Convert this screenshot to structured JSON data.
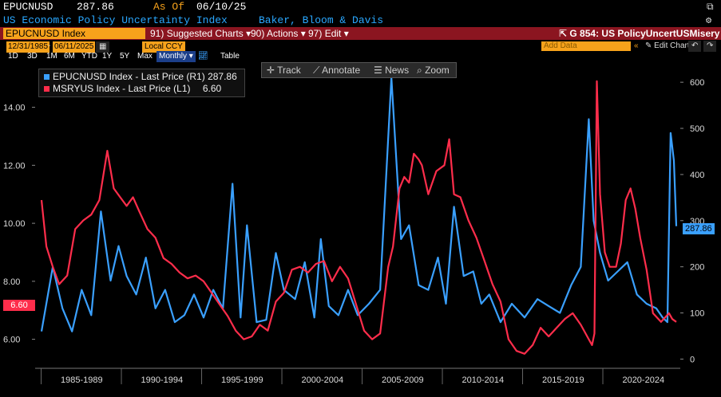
{
  "header": {
    "ticker": "EPUCNUSD",
    "price": "287.86",
    "as_of_label": "As Of",
    "as_of_date": "06/10/25",
    "description": "US Economic Policy Uncertainty Index",
    "source": "Baker, Bloom & Davis"
  },
  "command_bar": {
    "security": "EPUCNUSD Index",
    "suggested": "Suggested Charts",
    "actions": "Actions",
    "edit": "Edit",
    "chart_name": "G 854: US PolicyUncertUSMisery"
  },
  "range_bar": {
    "periods": [
      "1D",
      "3D",
      "1M",
      "6M",
      "YTD",
      "1Y",
      "5Y",
      "Max"
    ],
    "frequency": "Monthly",
    "table": "Table"
  },
  "date_bar": {
    "start": "12/31/1985",
    "end": "06/11/2025",
    "currency": "Local CCY",
    "add_data": "Add Data",
    "edit_chart": "Edit Chart"
  },
  "toolbar": {
    "track": "Track",
    "annotate": "Annotate",
    "news": "News",
    "zoom": "Zoom"
  },
  "legend": [
    {
      "label": "EPUCNUSD Index - Last Price (R1)",
      "value": "287.86",
      "color": "#3aa0ff"
    },
    {
      "label": "MSRYUS Index - Last Price (L1)",
      "value": "6.60",
      "color": "#ff2d4b"
    }
  ],
  "last_tags": {
    "left": "6.60",
    "right": "287.86"
  },
  "chart_data": {
    "type": "line",
    "x_categories": [
      "1985-1989",
      "1990-1994",
      "1995-1999",
      "2000-2004",
      "2005-2009",
      "2010-2014",
      "2015-2019",
      "2020-2024"
    ],
    "left_axis": {
      "ticks": [
        "6.00",
        "8.00",
        "10.00",
        "12.00",
        "14.00"
      ],
      "ylim": [
        5.0,
        15.5
      ]
    },
    "right_axis": {
      "ticks": [
        "0",
        "100",
        "200",
        "300",
        "400",
        "500",
        "600"
      ],
      "ylim": [
        -20,
        640
      ]
    },
    "series": [
      {
        "name": "EPUCNUSD Index - Last Price (R1)",
        "axis": "right",
        "color": "#3aa0ff",
        "x": [
          1985.9,
          1986.6,
          1987.2,
          1987.8,
          1988.4,
          1989.0,
          1989.6,
          1990.2,
          1990.7,
          1991.2,
          1991.8,
          1992.4,
          1993.0,
          1993.6,
          1994.2,
          1994.8,
          1995.4,
          1996.0,
          1996.6,
          1997.2,
          1997.8,
          1998.3,
          1998.7,
          1999.3,
          1999.9,
          2000.5,
          2001.0,
          2001.7,
          2002.3,
          2002.9,
          2003.3,
          2003.8,
          2004.4,
          2005.0,
          2005.6,
          2006.3,
          2007.0,
          2007.7,
          2008.3,
          2008.8,
          2009.4,
          2010.0,
          2010.6,
          2011.1,
          2011.6,
          2012.2,
          2012.8,
          2013.3,
          2013.8,
          2014.5,
          2015.2,
          2016.0,
          2016.8,
          2017.5,
          2018.2,
          2018.9,
          2019.5,
          2020.0,
          2020.3,
          2020.7,
          2021.2,
          2021.8,
          2022.4,
          2023.0,
          2023.6,
          2024.2,
          2024.6,
          2024.9,
          2025.1,
          2025.3,
          2025.45
        ],
        "values": [
          60,
          200,
          110,
          60,
          150,
          95,
          320,
          170,
          245,
          180,
          140,
          220,
          110,
          150,
          80,
          95,
          140,
          90,
          150,
          110,
          380,
          90,
          290,
          80,
          85,
          230,
          150,
          130,
          210,
          90,
          260,
          115,
          95,
          150,
          95,
          120,
          150,
          610,
          260,
          290,
          160,
          150,
          220,
          120,
          330,
          180,
          190,
          120,
          140,
          80,
          120,
          90,
          130,
          115,
          100,
          160,
          200,
          520,
          300,
          230,
          170,
          190,
          210,
          140,
          120,
          110,
          90,
          80,
          490,
          430,
          288
        ]
      },
      {
        "name": "MSRYUS Index - Last Price (L1)",
        "axis": "left",
        "color": "#ff2d4b",
        "x": [
          1985.9,
          1986.2,
          1986.6,
          1987.0,
          1987.5,
          1988.0,
          1988.5,
          1989.0,
          1989.5,
          1990.0,
          1990.4,
          1990.8,
          1991.2,
          1991.6,
          1992.0,
          1992.5,
          1993.0,
          1993.5,
          1994.0,
          1994.5,
          1995.0,
          1995.5,
          1996.0,
          1996.5,
          1997.0,
          1997.5,
          1998.0,
          1998.5,
          1999.0,
          1999.5,
          2000.0,
          2000.5,
          2001.0,
          2001.5,
          2002.0,
          2002.5,
          2003.0,
          2003.5,
          2004.0,
          2004.5,
          2005.0,
          2005.5,
          2006.0,
          2006.5,
          2007.0,
          2007.5,
          2007.8,
          2008.2,
          2008.5,
          2008.8,
          2009.1,
          2009.4,
          2009.6,
          2010.0,
          2010.5,
          2011.0,
          2011.3,
          2011.6,
          2012.0,
          2012.5,
          2013.0,
          2013.5,
          2014.0,
          2014.5,
          2015.0,
          2015.5,
          2016.0,
          2016.5,
          2017.0,
          2017.5,
          2018.0,
          2018.5,
          2019.0,
          2019.5,
          2020.0,
          2020.2,
          2020.35,
          2020.5,
          2020.7,
          2021.0,
          2021.3,
          2021.7,
          2022.0,
          2022.3,
          2022.6,
          2022.9,
          2023.2,
          2023.6,
          2024.0,
          2024.5,
          2025.0,
          2025.2,
          2025.45
        ],
        "values": [
          10.8,
          9.2,
          8.5,
          7.9,
          8.2,
          9.8,
          10.1,
          10.3,
          10.8,
          12.5,
          11.2,
          10.9,
          10.6,
          10.9,
          10.4,
          9.8,
          9.5,
          8.8,
          8.6,
          8.3,
          8.1,
          8.2,
          8.0,
          7.6,
          7.2,
          6.8,
          6.3,
          6.0,
          6.1,
          6.5,
          6.3,
          7.3,
          7.6,
          8.4,
          8.5,
          8.3,
          8.6,
          8.7,
          8.0,
          8.5,
          8.1,
          7.2,
          6.3,
          6.0,
          6.2,
          8.5,
          9.2,
          11.2,
          11.6,
          11.4,
          12.4,
          12.2,
          12.0,
          11.0,
          11.8,
          12.0,
          12.9,
          11.0,
          10.9,
          10.1,
          9.5,
          8.7,
          7.9,
          7.3,
          6.0,
          5.6,
          5.5,
          5.8,
          6.4,
          6.1,
          6.4,
          6.7,
          6.9,
          6.5,
          6.0,
          5.8,
          6.2,
          14.9,
          11.0,
          9.0,
          8.5,
          8.5,
          9.3,
          10.8,
          11.2,
          10.5,
          9.5,
          8.4,
          6.9,
          6.6,
          6.9,
          6.7,
          6.6
        ]
      }
    ]
  }
}
